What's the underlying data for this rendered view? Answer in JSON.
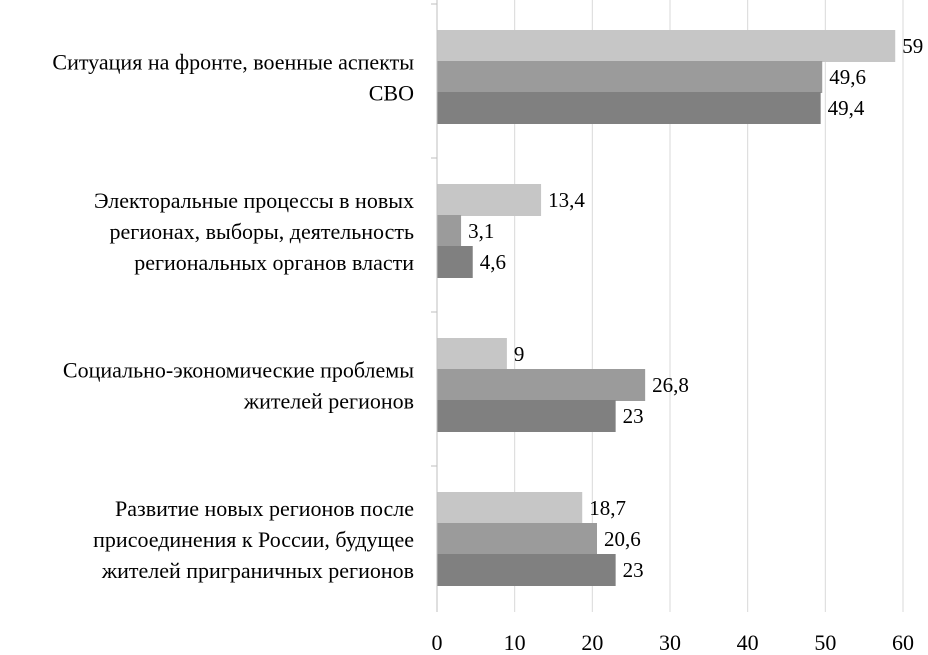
{
  "chart_data": {
    "type": "bar",
    "orientation": "horizontal",
    "categories": [
      [
        "Ситуация на фронте, военные аспекты",
        "СВО"
      ],
      [
        "Электоральные процессы в новых",
        "регионах, выборы, деятельность",
        "региональных органов власти"
      ],
      [
        "Социально-экономические проблемы",
        "жителей регионов"
      ],
      [
        "Развитие новых регионов после",
        "присоединения к России, будущее",
        "жителей приграничных регионов"
      ]
    ],
    "series": [
      {
        "values": [
          59,
          13.4,
          9,
          18.7
        ],
        "labels": [
          "59",
          "13,4",
          "9",
          "18,7"
        ],
        "color": "#c6c6c6"
      },
      {
        "values": [
          49.6,
          3.1,
          26.8,
          20.6
        ],
        "labels": [
          "49,6",
          "3,1",
          "26,8",
          "20,6"
        ],
        "color": "#9b9b9b"
      },
      {
        "values": [
          49.4,
          4.6,
          23,
          23
        ],
        "labels": [
          "49,4",
          "4,6",
          "23",
          "23"
        ],
        "color": "#808080"
      }
    ],
    "xticks": [
      "0",
      "10",
      "20",
      "30",
      "40",
      "50",
      "60"
    ],
    "xlim": [
      0,
      60
    ],
    "grid": true,
    "legend": "none",
    "title": "",
    "xlabel": "",
    "ylabel": ""
  }
}
